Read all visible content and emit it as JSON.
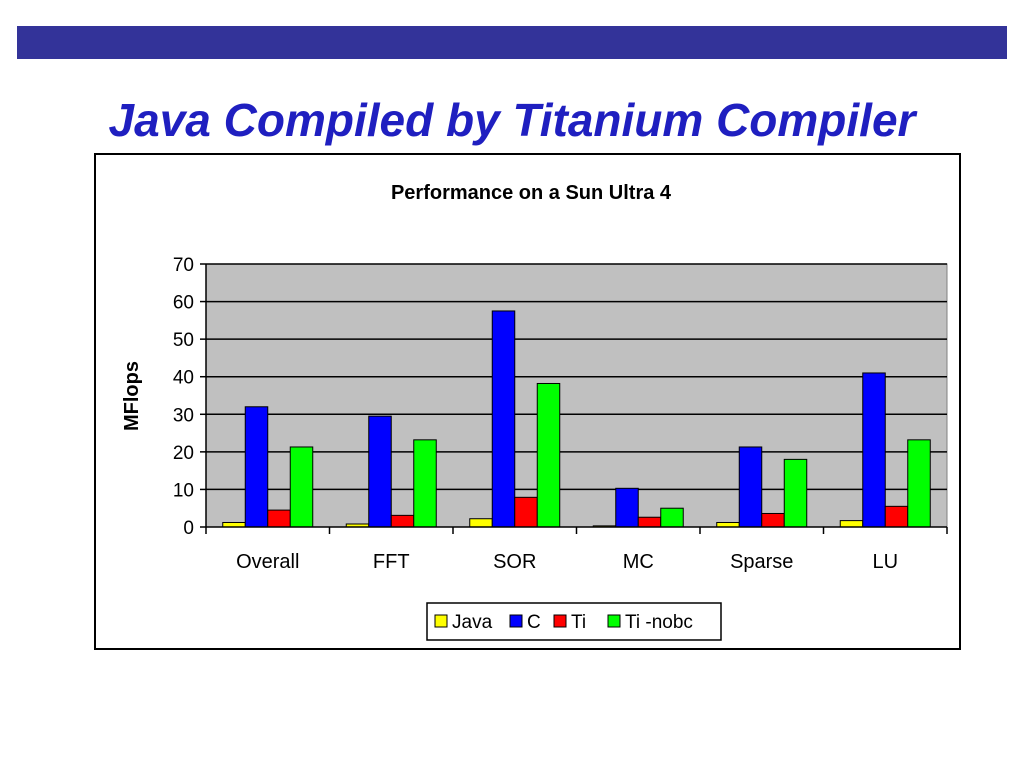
{
  "slide": {
    "title": "Java Compiled by Titanium Compiler",
    "title_color": "#1f1fc0",
    "bar_color": "#333399"
  },
  "chart_data": {
    "type": "bar",
    "title": "Performance on a Sun Ultra 4",
    "xlabel": "",
    "ylabel": "MFlops",
    "ylim": [
      0,
      70
    ],
    "yticks": [
      0,
      10,
      20,
      30,
      40,
      50,
      60,
      70
    ],
    "grid": true,
    "legend_position": "bottom",
    "plot_background": "#c0c0c0",
    "categories": [
      "Overall",
      "FFT",
      "SOR",
      "MC",
      "Sparse",
      "LU"
    ],
    "series": [
      {
        "name": "Java",
        "color": "#ffff00",
        "values": [
          1.2,
          0.8,
          2.2,
          0.3,
          1.2,
          1.7
        ]
      },
      {
        "name": "C",
        "color": "#0000ff",
        "values": [
          32.0,
          29.5,
          57.5,
          10.3,
          21.3,
          41.0
        ]
      },
      {
        "name": "Ti",
        "color": "#ff0000",
        "values": [
          4.5,
          3.1,
          7.9,
          2.6,
          3.6,
          5.5
        ]
      },
      {
        "name": "Ti -nobc",
        "color": "#00ff00",
        "values": [
          21.3,
          23.2,
          38.2,
          5.0,
          18.0,
          23.2
        ]
      }
    ]
  }
}
